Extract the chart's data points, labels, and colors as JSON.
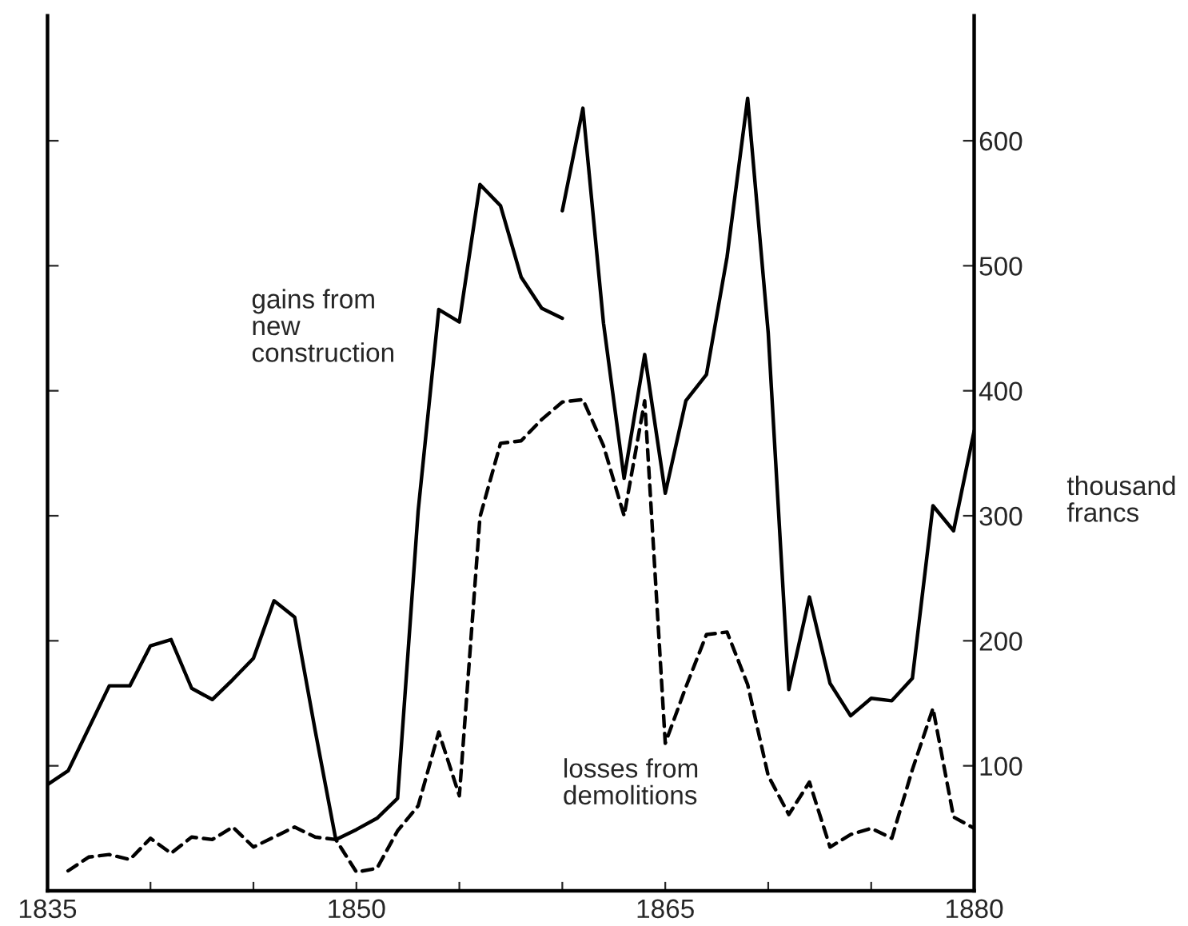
{
  "chart_data": {
    "type": "line",
    "ylabel": "thousand\nfrancs",
    "xlim": [
      1835,
      1880
    ],
    "ylim": [
      0,
      700
    ],
    "xticks": [
      1835,
      {
        "value": 1840,
        "label": null
      },
      {
        "value": 1845,
        "label": null
      },
      1850,
      {
        "value": 1855,
        "label": null
      },
      {
        "value": 1860,
        "label": null
      },
      1865,
      {
        "value": 1870,
        "label": null
      },
      {
        "value": 1875,
        "label": null
      },
      1880
    ],
    "yticks": [
      100,
      200,
      300,
      400,
      500,
      600
    ],
    "grid": false,
    "marker": "none",
    "series": [
      {
        "color": "#000000",
        "line_style": "solid",
        "x": [
          1835,
          1836,
          1837,
          1838,
          1839,
          1840,
          1841,
          1842,
          1843,
          1844,
          1845,
          1846,
          1847,
          1848,
          1849,
          1850,
          1851,
          1852,
          1853,
          1854,
          1855,
          1856,
          1857,
          1858,
          1859,
          1860
        ],
        "values": [
          85,
          96,
          130,
          164,
          164,
          196,
          201,
          162,
          153,
          169,
          186,
          232,
          219,
          128,
          41,
          49,
          58,
          74,
          304,
          465,
          455,
          565,
          548,
          491,
          466,
          458
        ]
      },
      {
        "color": "#000000",
        "line_style": "solid",
        "x": [
          1860,
          1861,
          1862,
          1863,
          1864,
          1865,
          1866,
          1867,
          1868,
          1869,
          1870,
          1871,
          1872,
          1873,
          1874,
          1875,
          1876,
          1877,
          1878,
          1879,
          1880
        ],
        "values": [
          544,
          626,
          454,
          330,
          429,
          318,
          392,
          413,
          507,
          634,
          446,
          161,
          235,
          166,
          140,
          154,
          152,
          170,
          308,
          288,
          368
        ]
      },
      {
        "color": "#000000",
        "line_style": "dashed",
        "x": [
          1836,
          1837,
          1838,
          1839,
          1840,
          1841,
          1842,
          1843,
          1844,
          1845,
          1846,
          1847,
          1848,
          1849,
          1850,
          1851,
          1852,
          1853,
          1854,
          1855,
          1856,
          1857,
          1858,
          1859,
          1860,
          1861,
          1862,
          1863,
          1864,
          1865,
          1866,
          1867,
          1868,
          1869,
          1870,
          1871,
          1872,
          1873,
          1874,
          1875,
          1876,
          1877,
          1878,
          1879,
          1880
        ],
        "values": [
          16,
          27,
          29,
          25,
          42,
          30,
          43,
          41,
          51,
          35,
          43,
          51,
          43,
          41,
          15,
          18,
          48,
          68,
          127,
          76,
          299,
          358,
          360,
          377,
          391,
          393,
          356,
          300,
          392,
          118,
          163,
          205,
          207,
          165,
          92,
          61,
          87,
          35,
          45,
          50,
          42,
          97,
          146,
          59,
          50
        ]
      }
    ],
    "annotations": [
      "gains from\nnew\nconstruction",
      "losses from\ndemolitions"
    ]
  }
}
